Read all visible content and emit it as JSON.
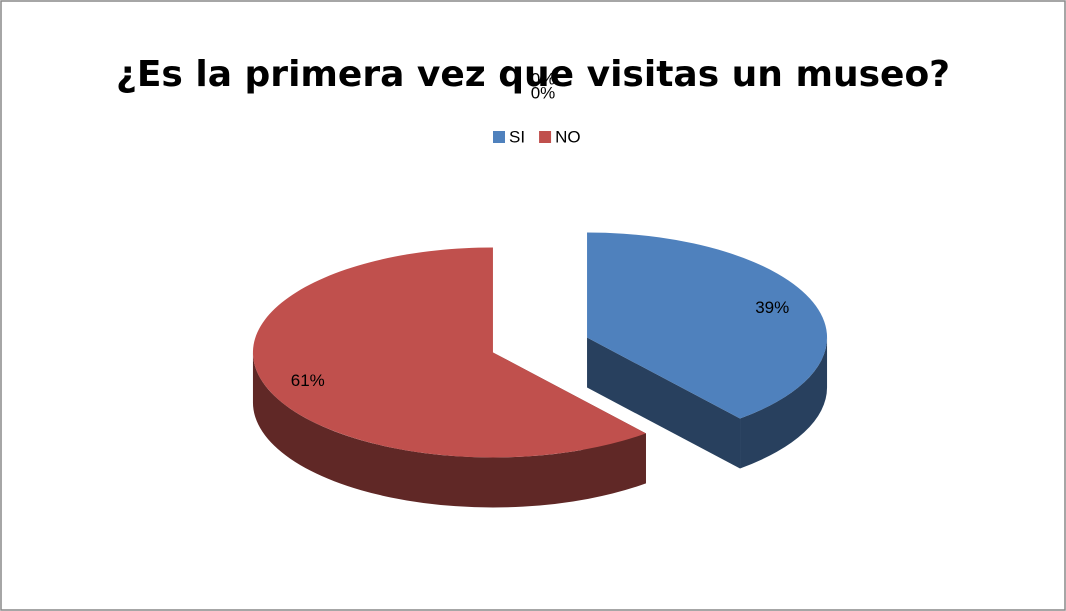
{
  "chart_data": {
    "type": "pie",
    "title": "¿Es la primera vez que visitas un museo?",
    "categories": [
      "SI",
      "NO",
      null,
      null
    ],
    "values": [
      39,
      61,
      0,
      0
    ],
    "value_labels": [
      "39%",
      "61%",
      "0%",
      "0%"
    ],
    "colors": [
      "#4f81bd",
      "#c0504d",
      "#9bbb59",
      "#8064a2"
    ],
    "legend": "top"
  }
}
